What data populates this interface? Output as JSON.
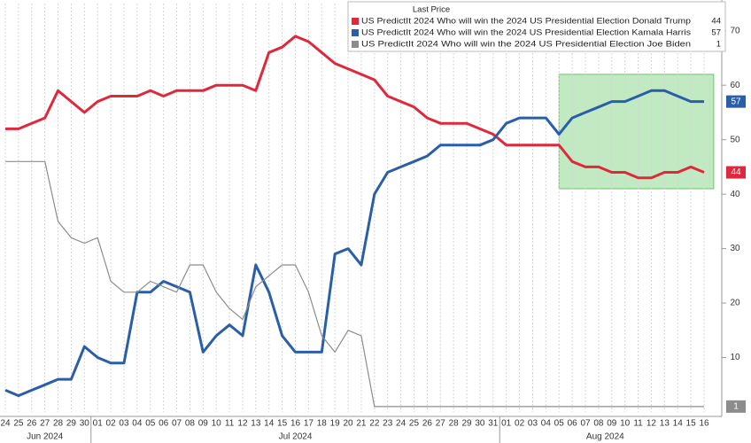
{
  "chart_data": {
    "type": "line",
    "legend_title": "Last Price",
    "categories": [
      "24",
      "25",
      "26",
      "27",
      "28",
      "29",
      "30",
      "01",
      "02",
      "03",
      "04",
      "05",
      "06",
      "07",
      "08",
      "09",
      "10",
      "11",
      "12",
      "13",
      "14",
      "15",
      "16",
      "17",
      "18",
      "19",
      "20",
      "21",
      "22",
      "23",
      "24",
      "25",
      "26",
      "27",
      "28",
      "29",
      "30",
      "31",
      "01",
      "02",
      "03",
      "04",
      "05",
      "06",
      "07",
      "08",
      "09",
      "10",
      "11",
      "12",
      "13",
      "14",
      "15",
      "16"
    ],
    "month_labels": [
      "Jun 2024",
      "Jul 2024",
      "Aug 2024"
    ],
    "series": [
      {
        "name": "US PredictIt 2024 Who will win the 2024 US Presidential Election Donald Trump",
        "color": "#e0283c",
        "values": [
          52,
          52,
          53,
          54,
          59,
          57,
          55,
          57,
          58,
          58,
          58,
          59,
          58,
          59,
          59,
          59,
          60,
          60,
          60,
          59,
          66,
          67,
          69,
          68,
          66,
          64,
          63,
          62,
          61,
          58,
          57,
          56,
          54,
          53,
          53,
          53,
          52,
          51,
          49,
          49,
          49,
          49,
          49,
          46,
          45,
          45,
          44,
          44,
          43,
          43,
          44,
          44,
          45,
          44
        ]
      },
      {
        "name": "US PredictIt 2024 Who will win the 2024 US Presidential Election Kamala Harris",
        "color": "#2a5ea8",
        "values": [
          4,
          3,
          4,
          5,
          6,
          6,
          12,
          10,
          9,
          9,
          22,
          22,
          24,
          23,
          22,
          11,
          14,
          16,
          14,
          27,
          22,
          14,
          11,
          11,
          11,
          29,
          30,
          27,
          40,
          44,
          45,
          46,
          47,
          49,
          49,
          49,
          49,
          50,
          53,
          54,
          54,
          54,
          51,
          54,
          55,
          56,
          57,
          57,
          58,
          59,
          59,
          58,
          57,
          57
        ]
      },
      {
        "name": "US PredictIt 2024 Who will win the 2024 US Presidential Election Joe Biden",
        "color": "#8c8c8c",
        "values": [
          46,
          46,
          46,
          46,
          35,
          32,
          31,
          32,
          24,
          22,
          22,
          24,
          23,
          22,
          27,
          27,
          22,
          19,
          17,
          23,
          25,
          27,
          27,
          22,
          14,
          11,
          15,
          14,
          1,
          1,
          1,
          1,
          1,
          1,
          1,
          1,
          1,
          1,
          1,
          1,
          1,
          1,
          1,
          1,
          1,
          1,
          1,
          1,
          1,
          1,
          1,
          1,
          1,
          1
        ]
      }
    ],
    "ylim": [
      0,
      75
    ],
    "yticks": [
      10,
      20,
      30,
      40,
      50,
      60,
      70
    ],
    "grid": true,
    "highlight": {
      "xlim": [
        42,
        54
      ],
      "ylim": [
        41,
        62
      ],
      "color": "#8fd88f"
    }
  }
}
